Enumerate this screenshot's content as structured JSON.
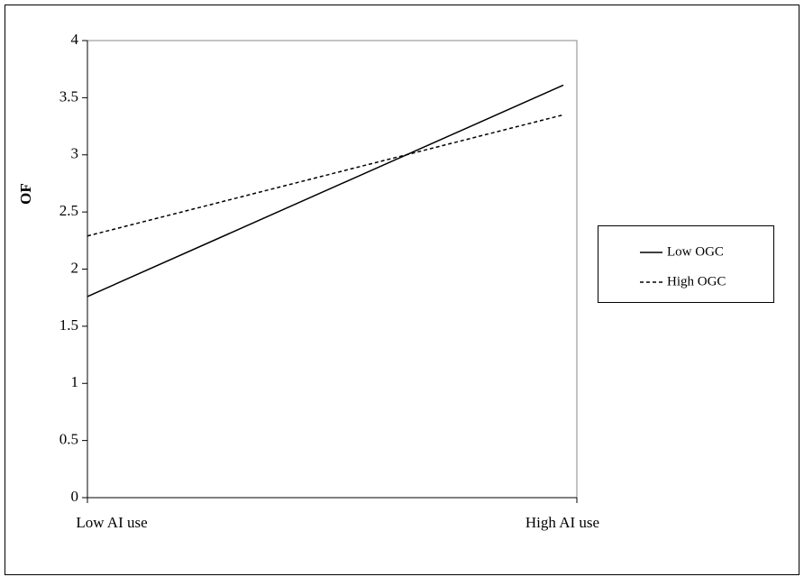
{
  "chart_data": {
    "type": "line",
    "ylabel": "OF",
    "categories": [
      "Low AI use",
      "High AI use"
    ],
    "series": [
      {
        "name": "Low OGC",
        "color": "#000000",
        "dash": "solid",
        "values": [
          1.76,
          3.61
        ]
      },
      {
        "name": "High OGC",
        "color": "#000000",
        "dash": "dashed",
        "values": [
          2.29,
          3.35
        ]
      }
    ],
    "ylim": [
      0,
      4
    ],
    "yticks": [
      0,
      0.5,
      1,
      1.5,
      2,
      2.5,
      3,
      3.5,
      4
    ],
    "legend": "right"
  }
}
